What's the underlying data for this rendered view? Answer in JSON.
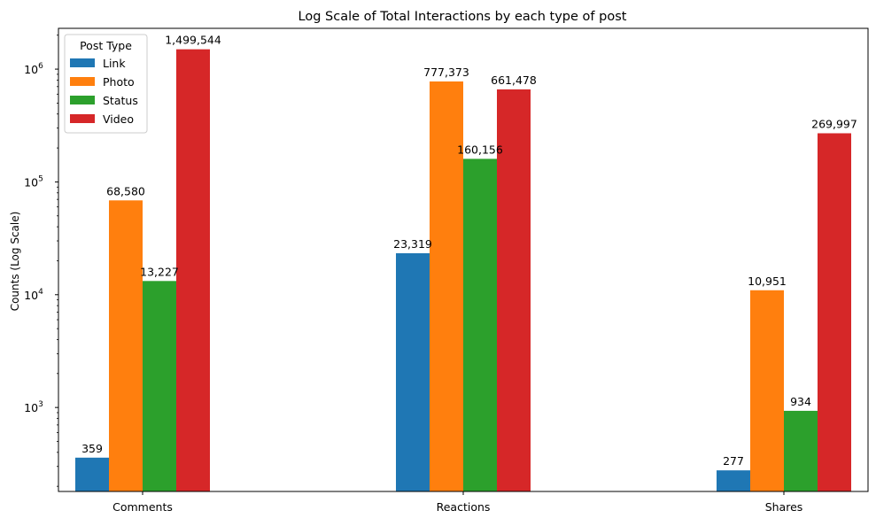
{
  "chart_data": {
    "type": "bar",
    "title": "Log Scale of Total Interactions by each type of post",
    "xlabel": "",
    "ylabel": "Counts (Log Scale)",
    "yscale": "log",
    "ylim": [
      180,
      2300000
    ],
    "yticks": [
      {
        "value": 1000,
        "base": "10",
        "exp": "3"
      },
      {
        "value": 10000,
        "base": "10",
        "exp": "4"
      },
      {
        "value": 100000,
        "base": "10",
        "exp": "5"
      },
      {
        "value": 1000000,
        "base": "10",
        "exp": "6"
      }
    ],
    "categories": [
      "Comments",
      "Reactions",
      "Shares"
    ],
    "series": [
      {
        "name": "Link",
        "color": "#1f77b4",
        "values": [
          359,
          23319,
          277
        ],
        "labels": [
          "359",
          "23,319",
          "277"
        ]
      },
      {
        "name": "Photo",
        "color": "#ff7f0e",
        "values": [
          68580,
          777373,
          10951
        ],
        "labels": [
          "68,580",
          "777,373",
          "10,951"
        ]
      },
      {
        "name": "Status",
        "color": "#2ca02c",
        "values": [
          13227,
          160156,
          934
        ],
        "labels": [
          "13,227",
          "160,156",
          "934"
        ]
      },
      {
        "name": "Video",
        "color": "#d62728",
        "values": [
          1499544,
          661478,
          269997
        ],
        "labels": [
          "1,499,544",
          "661,478",
          "269,997"
        ]
      }
    ],
    "legend": {
      "title": "Post Type",
      "placement": "top-left"
    },
    "grid": false
  }
}
